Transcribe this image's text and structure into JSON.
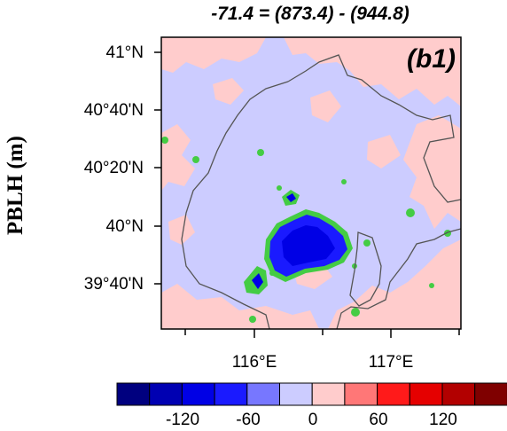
{
  "title": "-71.4 = (873.4) - (944.8)",
  "panel_label": "(b1)",
  "ylabel": "PBLH (m)",
  "lat_ticks": [
    "41°N",
    "40°40'N",
    "40°20'N",
    "40°N",
    "39°40'N"
  ],
  "lon_ticks": [
    "116°E",
    "117°E"
  ],
  "colorbar": {
    "tick_labels": [
      "-120",
      "-60",
      "0",
      "60",
      "120"
    ],
    "levels": [
      -150,
      -125,
      -100,
      -75,
      -50,
      -25,
      0,
      25,
      50,
      75,
      100,
      125,
      150
    ],
    "colors": [
      "#00007f",
      "#0000b2",
      "#0000e5",
      "#1a1aff",
      "#7777ff",
      "#ccccff",
      "#ffcccc",
      "#ff7777",
      "#ff1a1a",
      "#e50000",
      "#b20000",
      "#7f0000"
    ]
  },
  "map": {
    "background_color": "#ccccff",
    "positive_color": "#ffcccc",
    "urban_core_color": "#0000e5",
    "urban_edge_color": "#1a1aff",
    "highlight_color": "#44cc44",
    "boundary_color": "#555555"
  }
}
